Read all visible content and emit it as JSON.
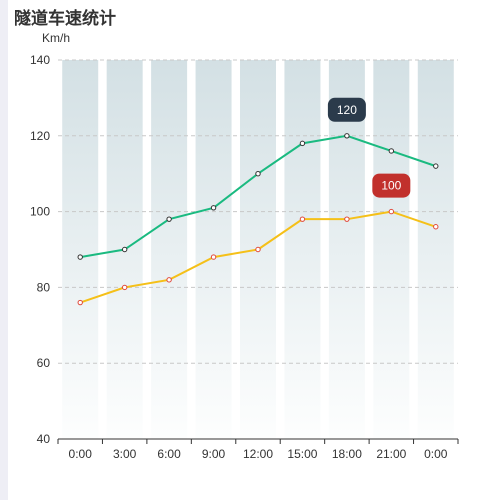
{
  "title": "隧道车速统计",
  "chart_data": {
    "type": "line",
    "title": "隧道车速统计",
    "ylabel": "Km/h",
    "xlabel": "",
    "categories": [
      "0:00",
      "3:00",
      "6:00",
      "9:00",
      "12:00",
      "15:00",
      "18:00",
      "21:00",
      "0:00"
    ],
    "ylim": [
      40,
      140
    ],
    "yticks": [
      40,
      60,
      80,
      100,
      120,
      140
    ],
    "grid": true,
    "series": [
      {
        "values": [
          88,
          90,
          98,
          101,
          110,
          118,
          120,
          116,
          112
        ],
        "color": "#1aba80",
        "marker_label": {
          "index": 6,
          "text": "120",
          "bg": "#2b3b4b"
        }
      },
      {
        "values": [
          76,
          80,
          82,
          88,
          90,
          98,
          98,
          100,
          96
        ],
        "color": "#f5c018",
        "point_color": "#e0483a",
        "marker_label": {
          "index": 7,
          "text": "100",
          "bg": "#c1302c"
        }
      }
    ]
  },
  "colors": {
    "band_top": "#d3e0e4",
    "band_bottom": "#fdfefe",
    "grid": "#c8c8c8",
    "axis": "#333333"
  }
}
